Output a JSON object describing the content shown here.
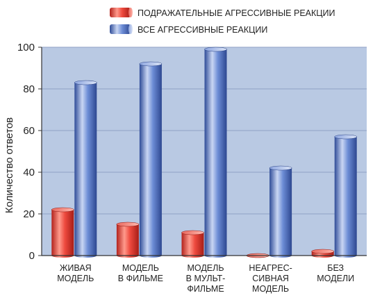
{
  "chart_data": {
    "type": "bar",
    "style": "3d-cylinder",
    "categories": [
      [
        "ЖИВАЯ",
        "МОДЕЛЬ"
      ],
      [
        "МОДЕЛЬ",
        "В ФИЛЬМЕ"
      ],
      [
        "МОДЕЛЬ",
        "В МУЛЬТ-",
        "ФИЛЬМЕ"
      ],
      [
        "НЕАГРЕС-",
        "СИВНАЯ",
        "МОДЕЛЬ"
      ],
      [
        "БЕЗ",
        "МОДЕЛИ"
      ]
    ],
    "series": [
      {
        "name": "ПОДРАЖАТЕЛЬНЫЕ АГРЕССИВНЫЕ РЕАКЦИИ",
        "color": "#e8453c",
        "values": [
          22,
          15,
          11,
          0,
          2
        ]
      },
      {
        "name": "ВСЕ АГРЕССИВНЫЕ РЕАКЦИИ",
        "color": "#5f7fc9",
        "values": [
          83,
          92,
          99,
          42,
          57
        ]
      }
    ],
    "ylabel": "Количество ответов",
    "xlabel": "",
    "ylim": [
      0,
      100
    ],
    "yticks": [
      0,
      20,
      40,
      60,
      80,
      100
    ],
    "grid": true,
    "plot_background": "#b9c9e3",
    "legend_position": "top-right"
  }
}
